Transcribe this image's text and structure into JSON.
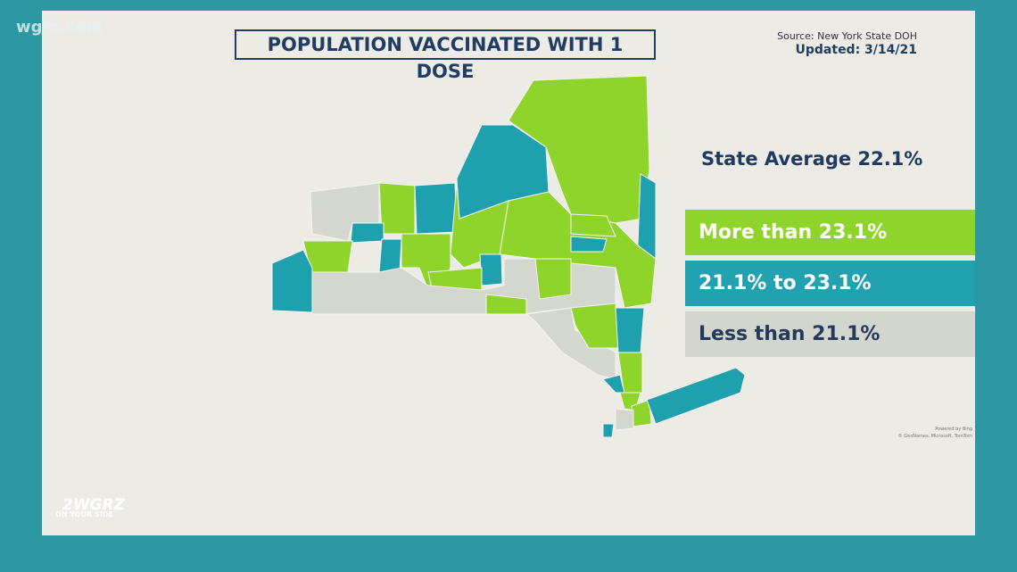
{
  "watermark": "wgrz.com",
  "header": {
    "title": "POPULATION VACCINATED WITH 1 DOSE",
    "source": "Source: New York State DOH",
    "updated": "Updated: 3/14/21"
  },
  "legend": {
    "state_average": "State Average 22.1%",
    "items": [
      {
        "label": "More than 23.1%"
      },
      {
        "label": "21.1% to 23.1%"
      },
      {
        "label": "Less than 21.1%"
      }
    ]
  },
  "map_credits": {
    "powered": "Powered by Bing",
    "copyright": "© GeoNames, Microsoft, TomTom"
  },
  "logo": {
    "brand": "2WGRZ",
    "tagline": "ON YOUR SIDE"
  }
}
